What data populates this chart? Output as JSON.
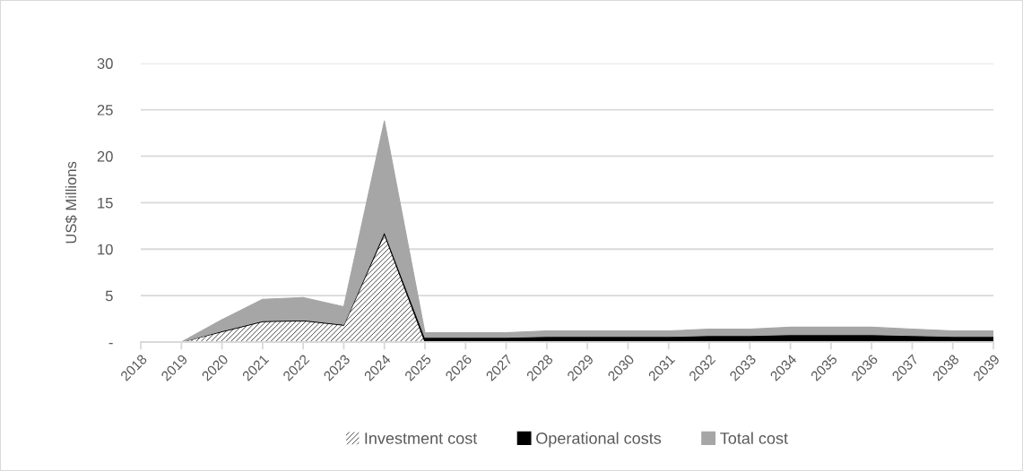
{
  "chart_data": {
    "type": "area",
    "stacked": true,
    "ylabel": "US$ Millions",
    "categories": [
      "2018",
      "2019",
      "2020",
      "2021",
      "2022",
      "2023",
      "2024",
      "2025",
      "2026",
      "2027",
      "2028",
      "2029",
      "2030",
      "2031",
      "2032",
      "2033",
      "2034",
      "2035",
      "2036",
      "2037",
      "2038",
      "2039"
    ],
    "series": [
      {
        "name": "Investment cost",
        "color": "#404040",
        "values": [
          0,
          0,
          1.1,
          2.2,
          2.3,
          1.8,
          11.6,
          0,
          0,
          0,
          0,
          0,
          0,
          0,
          0,
          0,
          0,
          0,
          0,
          0,
          0,
          0
        ]
      },
      {
        "name": "Operational costs",
        "color": "#000000",
        "values": [
          0,
          0,
          0.1,
          0.1,
          0.1,
          0.1,
          0.3,
          0.5,
          0.5,
          0.5,
          0.6,
          0.6,
          0.6,
          0.6,
          0.7,
          0.7,
          0.8,
          0.8,
          0.8,
          0.7,
          0.6,
          0.6
        ]
      },
      {
        "name": "Total cost",
        "color": "#a6a6a6",
        "values": [
          0,
          0,
          1.2,
          2.3,
          2.4,
          1.9,
          11.9,
          0.5,
          0.5,
          0.5,
          0.6,
          0.6,
          0.6,
          0.6,
          0.7,
          0.7,
          0.8,
          0.8,
          0.8,
          0.7,
          0.6,
          0.6
        ]
      }
    ],
    "ylim": [
      0,
      30
    ],
    "yticks": [
      {
        "value": 0,
        "label": "-"
      },
      5,
      10,
      15,
      20,
      25,
      30
    ],
    "grid": "y",
    "legend": "bottom"
  }
}
